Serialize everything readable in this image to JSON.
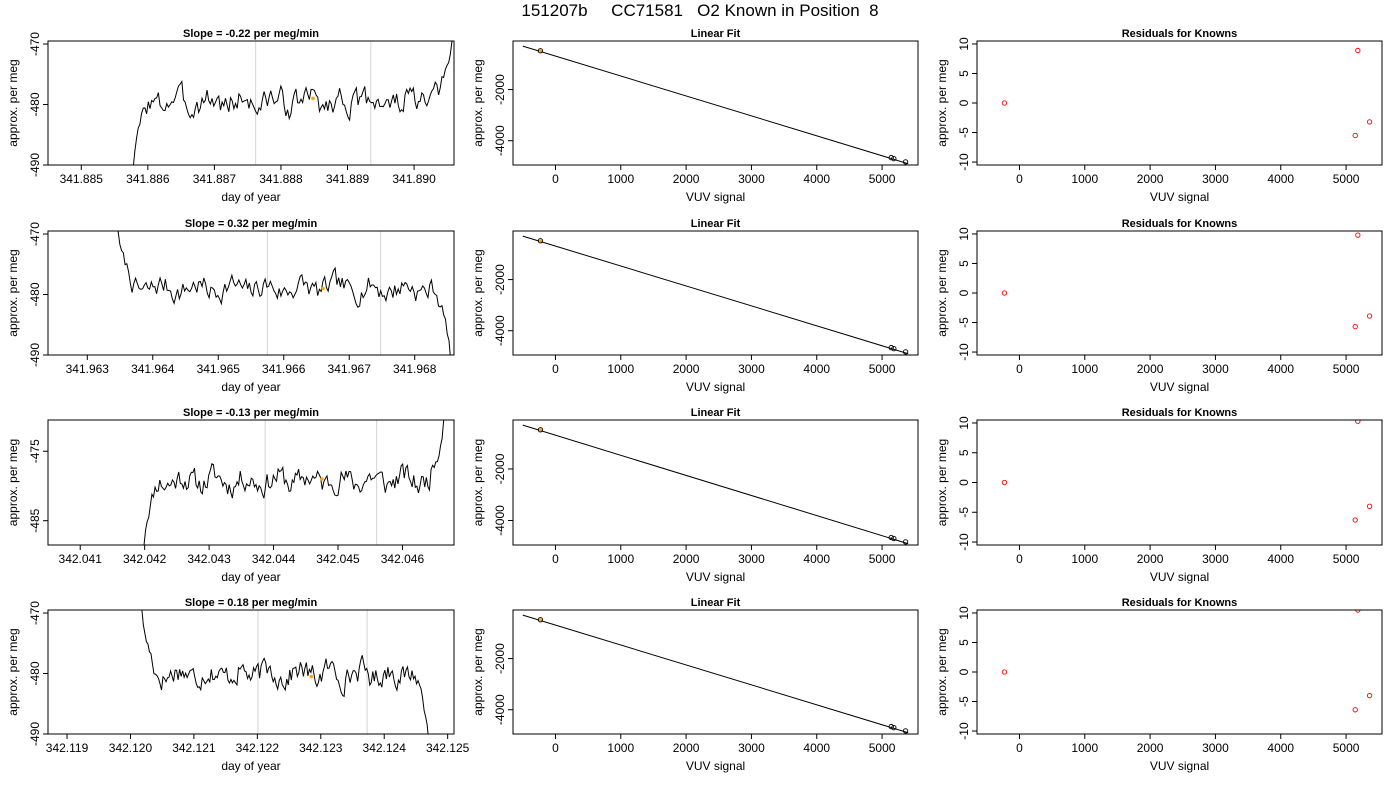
{
  "page": {
    "title": "151207b     CC71581   O2 Known in Position  8"
  },
  "colors": {
    "trace": "#000000",
    "cursor": "#d3d3d3",
    "known_marker": "#ffa500",
    "fit_point": "#000000",
    "residual": "#ff0000",
    "fit_line": "#000000"
  },
  "chart_data": [
    {
      "id": "r1-trace",
      "type": "line",
      "title": "Slope =  -0.22  per meg/min",
      "xlabel": "day of year",
      "ylabel": "approx. per meg",
      "xlim": [
        341.8845,
        341.8906
      ],
      "ylim": [
        -490,
        -469.5
      ],
      "xticks": [
        341.885,
        341.886,
        341.887,
        341.888,
        341.889,
        341.89
      ],
      "xtick_labels": [
        "341.885",
        "341.886",
        "341.887",
        "341.888",
        "341.889",
        "341.890"
      ],
      "yticks": [
        -490,
        -480,
        -470
      ],
      "ytick_labels": [
        "-490",
        "-480",
        "-470"
      ],
      "vlines": [
        341.88762,
        341.88935
      ],
      "marker": {
        "x": 341.88848,
        "y": -479
      },
      "curve": {
        "x0": 341.88578,
        "x1": 341.89057,
        "plateau": -479.5,
        "start": -490.5,
        "end": -469.5,
        "amp": 1.8,
        "seed": 3
      }
    },
    {
      "id": "r1-fit",
      "type": "scatter",
      "title": "Linear Fit",
      "xlabel": "VUV signal",
      "ylabel": "approx. per meg",
      "xlim": [
        -650,
        5550
      ],
      "ylim": [
        -4950,
        -100
      ],
      "xticks": [
        0,
        1000,
        2000,
        3000,
        4000,
        5000
      ],
      "xtick_labels": [
        "0",
        "1000",
        "2000",
        "3000",
        "4000",
        "5000"
      ],
      "yticks": [
        -4000,
        -2000
      ],
      "ytick_labels": [
        "-4000",
        "-2000"
      ],
      "line": [
        [
          -500,
          -300
        ],
        [
          5400,
          -4900
        ]
      ],
      "points": [
        {
          "x": -230,
          "y": -480
        },
        {
          "x": 5140,
          "y": -4660
        },
        {
          "x": 5180,
          "y": -4700
        },
        {
          "x": 5360,
          "y": -4830
        }
      ],
      "known": {
        "x": -230,
        "y": -480
      }
    },
    {
      "id": "r1-res",
      "type": "scatter",
      "title": "Residuals for Knowns",
      "xlabel": "VUV signal",
      "ylabel": "approx. per meg",
      "xlim": [
        -650,
        5550
      ],
      "ylim": [
        -10.5,
        10.5
      ],
      "xticks": [
        0,
        1000,
        2000,
        3000,
        4000,
        5000
      ],
      "xtick_labels": [
        "0",
        "1000",
        "2000",
        "3000",
        "4000",
        "5000"
      ],
      "yticks": [
        -10,
        -5,
        0,
        5,
        10
      ],
      "ytick_labels": [
        "-10",
        "-5",
        "0",
        "5",
        "10"
      ],
      "points": [
        {
          "x": -230,
          "y": 0
        },
        {
          "x": 5140,
          "y": -5.5
        },
        {
          "x": 5180,
          "y": 8.9
        },
        {
          "x": 5360,
          "y": -3.2
        }
      ]
    },
    {
      "id": "r2-trace",
      "type": "line",
      "title": "Slope =  0.32  per meg/min",
      "xlabel": "day of year",
      "ylabel": "approx. per meg",
      "xlim": [
        341.9624,
        341.9686
      ],
      "ylim": [
        -490,
        -469.5
      ],
      "xticks": [
        341.963,
        341.964,
        341.965,
        341.966,
        341.967,
        341.968
      ],
      "xtick_labels": [
        "341.963",
        "341.964",
        "341.965",
        "341.966",
        "341.967",
        "341.968"
      ],
      "yticks": [
        -490,
        -480,
        -470
      ],
      "ytick_labels": [
        "-490",
        "-480",
        "-470"
      ],
      "vlines": [
        341.96575,
        341.96748
      ],
      "marker": {
        "x": 341.9666,
        "y": -479
      },
      "curve": {
        "x0": 341.96347,
        "x1": 341.96855,
        "plateau": -479,
        "start": -469.5,
        "end": -491,
        "amp": 1.6,
        "seed": 7
      }
    },
    {
      "id": "r2-fit",
      "type": "scatter",
      "title": "Linear Fit",
      "xlabel": "VUV signal",
      "ylabel": "approx. per meg",
      "xlim": [
        -650,
        5550
      ],
      "ylim": [
        -4950,
        -100
      ],
      "xticks": [
        0,
        1000,
        2000,
        3000,
        4000,
        5000
      ],
      "xtick_labels": [
        "0",
        "1000",
        "2000",
        "3000",
        "4000",
        "5000"
      ],
      "yticks": [
        -4000,
        -2000
      ],
      "ytick_labels": [
        "-4000",
        "-2000"
      ],
      "line": [
        [
          -500,
          -300
        ],
        [
          5400,
          -4900
        ]
      ],
      "points": [
        {
          "x": -230,
          "y": -480
        },
        {
          "x": 5140,
          "y": -4660
        },
        {
          "x": 5180,
          "y": -4700
        },
        {
          "x": 5360,
          "y": -4830
        }
      ],
      "known": {
        "x": -230,
        "y": -480
      }
    },
    {
      "id": "r2-res",
      "type": "scatter",
      "title": "Residuals for Knowns",
      "xlabel": "VUV signal",
      "ylabel": "approx. per meg",
      "xlim": [
        -650,
        5550
      ],
      "ylim": [
        -10.5,
        10.5
      ],
      "xticks": [
        0,
        1000,
        2000,
        3000,
        4000,
        5000
      ],
      "xtick_labels": [
        "0",
        "1000",
        "2000",
        "3000",
        "4000",
        "5000"
      ],
      "yticks": [
        -10,
        -5,
        0,
        5,
        10
      ],
      "ytick_labels": [
        "-10",
        "-5",
        "0",
        "5",
        "10"
      ],
      "points": [
        {
          "x": -230,
          "y": 0
        },
        {
          "x": 5140,
          "y": -5.7
        },
        {
          "x": 5180,
          "y": 9.8
        },
        {
          "x": 5360,
          "y": -3.9
        }
      ]
    },
    {
      "id": "r3-trace",
      "type": "line",
      "title": "Slope =  -0.13  per meg/min",
      "xlabel": "day of year",
      "ylabel": "approx. per meg",
      "xlim": [
        342.0405,
        342.0468
      ],
      "ylim": [
        -488.5,
        -470.5
      ],
      "xticks": [
        342.041,
        342.042,
        342.043,
        342.044,
        342.045,
        342.046
      ],
      "xtick_labels": [
        "342.041",
        "342.042",
        "342.043",
        "342.044",
        "342.045",
        "342.046"
      ],
      "yticks": [
        -485,
        -475
      ],
      "ytick_labels": [
        "-485",
        "-475"
      ],
      "vlines": [
        342.04387,
        342.0456
      ],
      "marker": {
        "x": 342.04475,
        "y": -479
      },
      "curve": {
        "x0": 342.04199,
        "x1": 342.04664,
        "plateau": -479.2,
        "start": -488.5,
        "end": -470.5,
        "amp": 1.5,
        "seed": 11
      }
    },
    {
      "id": "r3-fit",
      "type": "scatter",
      "title": "Linear Fit",
      "xlabel": "VUV signal",
      "ylabel": "approx. per meg",
      "xlim": [
        -650,
        5550
      ],
      "ylim": [
        -4950,
        -100
      ],
      "xticks": [
        0,
        1000,
        2000,
        3000,
        4000,
        5000
      ],
      "xtick_labels": [
        "0",
        "1000",
        "2000",
        "3000",
        "4000",
        "5000"
      ],
      "yticks": [
        -4000,
        -2000
      ],
      "ytick_labels": [
        "-4000",
        "-2000"
      ],
      "line": [
        [
          -500,
          -300
        ],
        [
          5400,
          -4900
        ]
      ],
      "points": [
        {
          "x": -230,
          "y": -480
        },
        {
          "x": 5140,
          "y": -4660
        },
        {
          "x": 5180,
          "y": -4700
        },
        {
          "x": 5360,
          "y": -4830
        }
      ],
      "known": {
        "x": -230,
        "y": -480
      }
    },
    {
      "id": "r3-res",
      "type": "scatter",
      "title": "Residuals for Knowns",
      "xlabel": "VUV signal",
      "ylabel": "approx. per meg",
      "xlim": [
        -650,
        5550
      ],
      "ylim": [
        -10.5,
        10.5
      ],
      "xticks": [
        0,
        1000,
        2000,
        3000,
        4000,
        5000
      ],
      "xtick_labels": [
        "0",
        "1000",
        "2000",
        "3000",
        "4000",
        "5000"
      ],
      "yticks": [
        -10,
        -5,
        0,
        5,
        10
      ],
      "ytick_labels": [
        "-10",
        "-5",
        "0",
        "5",
        "10"
      ],
      "points": [
        {
          "x": -230,
          "y": 0
        },
        {
          "x": 5140,
          "y": -6.3
        },
        {
          "x": 5180,
          "y": 10.3
        },
        {
          "x": 5360,
          "y": -4
        }
      ]
    },
    {
      "id": "r4-trace",
      "type": "line",
      "title": "Slope =  0.18  per meg/min",
      "xlabel": "day of year",
      "ylabel": "approx. per meg",
      "xlim": [
        342.1187,
        342.1251
      ],
      "ylim": [
        -490,
        -469.5
      ],
      "xticks": [
        342.119,
        342.12,
        342.121,
        342.122,
        342.123,
        342.124,
        342.125
      ],
      "xtick_labels": [
        "342.119",
        "342.120",
        "342.121",
        "342.122",
        "342.123",
        "342.124",
        "342.125"
      ],
      "yticks": [
        -490,
        -480,
        -470
      ],
      "ytick_labels": [
        "-490",
        "-480",
        "-470"
      ],
      "vlines": [
        342.12201,
        342.12373
      ],
      "marker": {
        "x": 342.12285,
        "y": -480.5
      },
      "curve": {
        "x0": 342.12018,
        "x1": 342.1247,
        "plateau": -480,
        "start": -469.5,
        "end": -491,
        "amp": 1.7,
        "seed": 17
      }
    },
    {
      "id": "r4-fit",
      "type": "scatter",
      "title": "Linear Fit",
      "xlabel": "VUV signal",
      "ylabel": "approx. per meg",
      "xlim": [
        -650,
        5550
      ],
      "ylim": [
        -4950,
        -100
      ],
      "xticks": [
        0,
        1000,
        2000,
        3000,
        4000,
        5000
      ],
      "xtick_labels": [
        "0",
        "1000",
        "2000",
        "3000",
        "4000",
        "5000"
      ],
      "yticks": [
        -4000,
        -2000
      ],
      "ytick_labels": [
        "-4000",
        "-2000"
      ],
      "line": [
        [
          -500,
          -300
        ],
        [
          5400,
          -4900
        ]
      ],
      "points": [
        {
          "x": -230,
          "y": -480
        },
        {
          "x": 5140,
          "y": -4660
        },
        {
          "x": 5180,
          "y": -4700
        },
        {
          "x": 5360,
          "y": -4830
        }
      ],
      "known": {
        "x": -230,
        "y": -480
      }
    },
    {
      "id": "r4-res",
      "type": "scatter",
      "title": "Residuals for Knowns",
      "xlabel": "VUV signal",
      "ylabel": "approx. per meg",
      "xlim": [
        -650,
        5550
      ],
      "ylim": [
        -10.5,
        10.5
      ],
      "xticks": [
        0,
        1000,
        2000,
        3000,
        4000,
        5000
      ],
      "xtick_labels": [
        "0",
        "1000",
        "2000",
        "3000",
        "4000",
        "5000"
      ],
      "yticks": [
        -10,
        -5,
        0,
        5,
        10
      ],
      "ytick_labels": [
        "-10",
        "-5",
        "0",
        "5",
        "10"
      ],
      "points": [
        {
          "x": -230,
          "y": 0
        },
        {
          "x": 5140,
          "y": -6.4
        },
        {
          "x": 5180,
          "y": 10.5
        },
        {
          "x": 5360,
          "y": -4
        }
      ]
    }
  ]
}
